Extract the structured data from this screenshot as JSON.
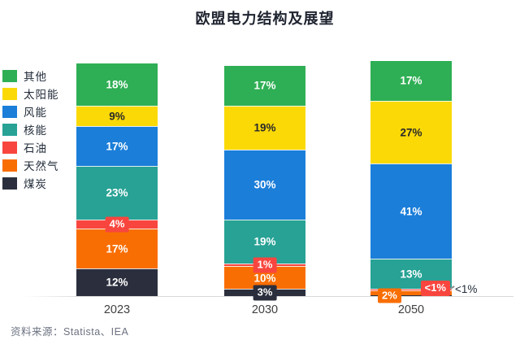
{
  "title": "欧盟电力结构及展望",
  "source": "资料来源：Statista、IEA",
  "colors": {
    "axis_line": "#D9D9D9",
    "title_text": "#1F2430",
    "category_label_text": "#404040",
    "source_text": "#6B7280"
  },
  "chart_data": {
    "type": "bar",
    "stacked": true,
    "unit": "%",
    "title": "欧盟电力结构及展望",
    "categories": [
      "2023",
      "2030",
      "2050"
    ],
    "legend_position": "left",
    "grid": false,
    "y_axis_visible": false,
    "ylim": [
      0,
      100
    ],
    "stack_order": "series listed top-to-bottom within each bar",
    "series": [
      {
        "name": "其他",
        "color": "#2FAF55",
        "label_color": "#FFFFFF",
        "values": [
          18,
          17,
          17
        ],
        "labels": [
          "18%",
          "17%",
          "17%"
        ]
      },
      {
        "name": "太阳能",
        "color": "#FBD906",
        "label_color": "#2A2A2A",
        "values": [
          9,
          19,
          27
        ],
        "labels": [
          "9%",
          "19%",
          "27%"
        ]
      },
      {
        "name": "风能",
        "color": "#1B7ED9",
        "label_color": "#FFFFFF",
        "values": [
          17,
          30,
          41
        ],
        "labels": [
          "17%",
          "30%",
          "41%"
        ]
      },
      {
        "name": "核能",
        "color": "#27A295",
        "label_color": "#FFFFFF",
        "values": [
          23,
          19,
          13
        ],
        "labels": [
          "23%",
          "19%",
          "13%"
        ]
      },
      {
        "name": "石油",
        "color": "#F8463F",
        "label_color": "#FFFFFF",
        "values": [
          4,
          1,
          0.7
        ],
        "labels": [
          "4%",
          "1%",
          "<1%"
        ]
      },
      {
        "name": "天然气",
        "color": "#F96E02",
        "label_color": "#FFFFFF",
        "values": [
          17,
          10,
          2
        ],
        "labels": [
          "17%",
          "10%",
          "2%"
        ]
      },
      {
        "name": "煤炭",
        "color": "#2B2F3D",
        "label_color": "#FFFFFF",
        "values": [
          12,
          3,
          0.4
        ],
        "labels": [
          "12%",
          "3%",
          "<1%"
        ]
      }
    ]
  }
}
